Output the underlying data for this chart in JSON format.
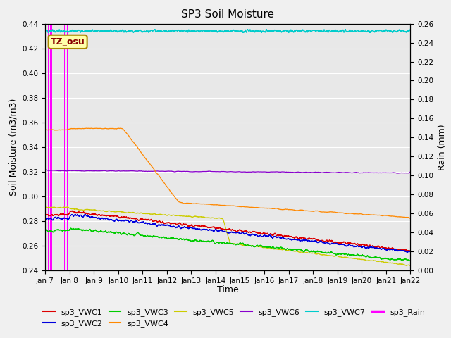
{
  "title": "SP3 Soil Moisture",
  "ylabel_left": "Soil Moisture (m3/m3)",
  "ylabel_right": "Rain (mm)",
  "xlabel": "Time",
  "ylim_left": [
    0.24,
    0.44
  ],
  "ylim_right": [
    0.0,
    0.26
  ],
  "xlim": [
    0,
    15
  ],
  "bg_color": "#e8e8e8",
  "fig_color": "#f0f0f0",
  "series_colors": {
    "sp3_VWC1": "#dd0000",
    "sp3_VWC2": "#0000dd",
    "sp3_VWC3": "#00cc00",
    "sp3_VWC4": "#ff8800",
    "sp3_VWC5": "#cccc00",
    "sp3_VWC6": "#8800cc",
    "sp3_VWC7": "#00cccc",
    "sp3_Rain": "#ff00ff"
  },
  "watermark_text": "TZ_osu",
  "watermark_color": "#880000",
  "watermark_bg": "#ffffaa",
  "watermark_edge": "#aa8800",
  "grid_color": "#ffffff",
  "tick_fontsize": 7.5,
  "axis_label_fontsize": 9,
  "title_fontsize": 11,
  "legend_fontsize": 8
}
